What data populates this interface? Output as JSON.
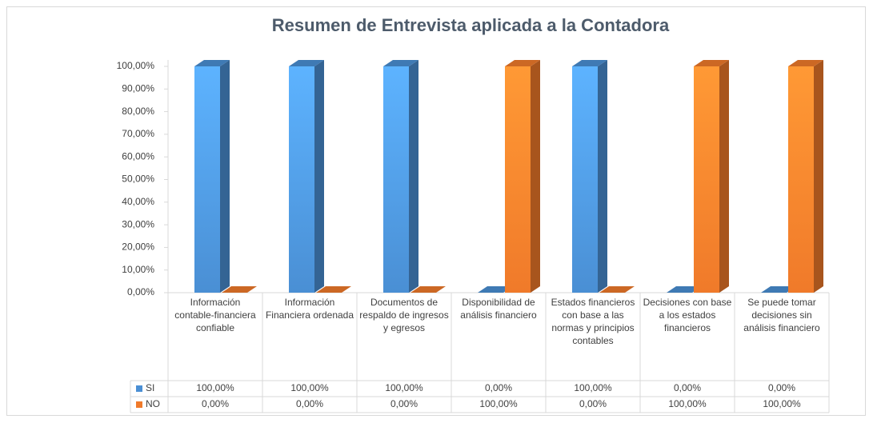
{
  "chart_data": {
    "type": "bar3d",
    "title": "Resumen de Entrevista aplicada a la Contadora",
    "categories": [
      "Información contable-financiera confiable",
      "Información Financiera ordenada",
      "Documentos de respaldo de ingresos y egresos",
      "Disponibilidad de análisis financiero",
      "Estados financieros con base a las normas y principios contables",
      "Decisiones con base a los estados financieros",
      "Se puede tomar decisiones sin análisis financiero"
    ],
    "series": [
      {
        "name": "SI",
        "color": "#4a8fd4",
        "values": [
          100,
          100,
          100,
          0,
          100,
          0,
          0
        ],
        "value_labels": [
          "100,00%",
          "100,00%",
          "100,00%",
          "0,00%",
          "100,00%",
          "0,00%",
          "0,00%"
        ]
      },
      {
        "name": "NO",
        "color": "#f07a2a",
        "values": [
          0,
          0,
          0,
          100,
          0,
          100,
          100
        ],
        "value_labels": [
          "0,00%",
          "0,00%",
          "0,00%",
          "100,00%",
          "0,00%",
          "100,00%",
          "100,00%"
        ]
      }
    ],
    "ylim": [
      0,
      100
    ],
    "yticks": [
      {
        "value": 0,
        "label": "0,00%"
      },
      {
        "value": 10,
        "label": "10,00%"
      },
      {
        "value": 20,
        "label": "20,00%"
      },
      {
        "value": 30,
        "label": "30,00%"
      },
      {
        "value": 40,
        "label": "40,00%"
      },
      {
        "value": 50,
        "label": "50,00%"
      },
      {
        "value": 60,
        "label": "60,00%"
      },
      {
        "value": 70,
        "label": "70,00%"
      },
      {
        "value": 80,
        "label": "80,00%"
      },
      {
        "value": 90,
        "label": "90,00%"
      },
      {
        "value": 100,
        "label": "100,00%"
      }
    ],
    "grid": false,
    "legend": "table"
  }
}
